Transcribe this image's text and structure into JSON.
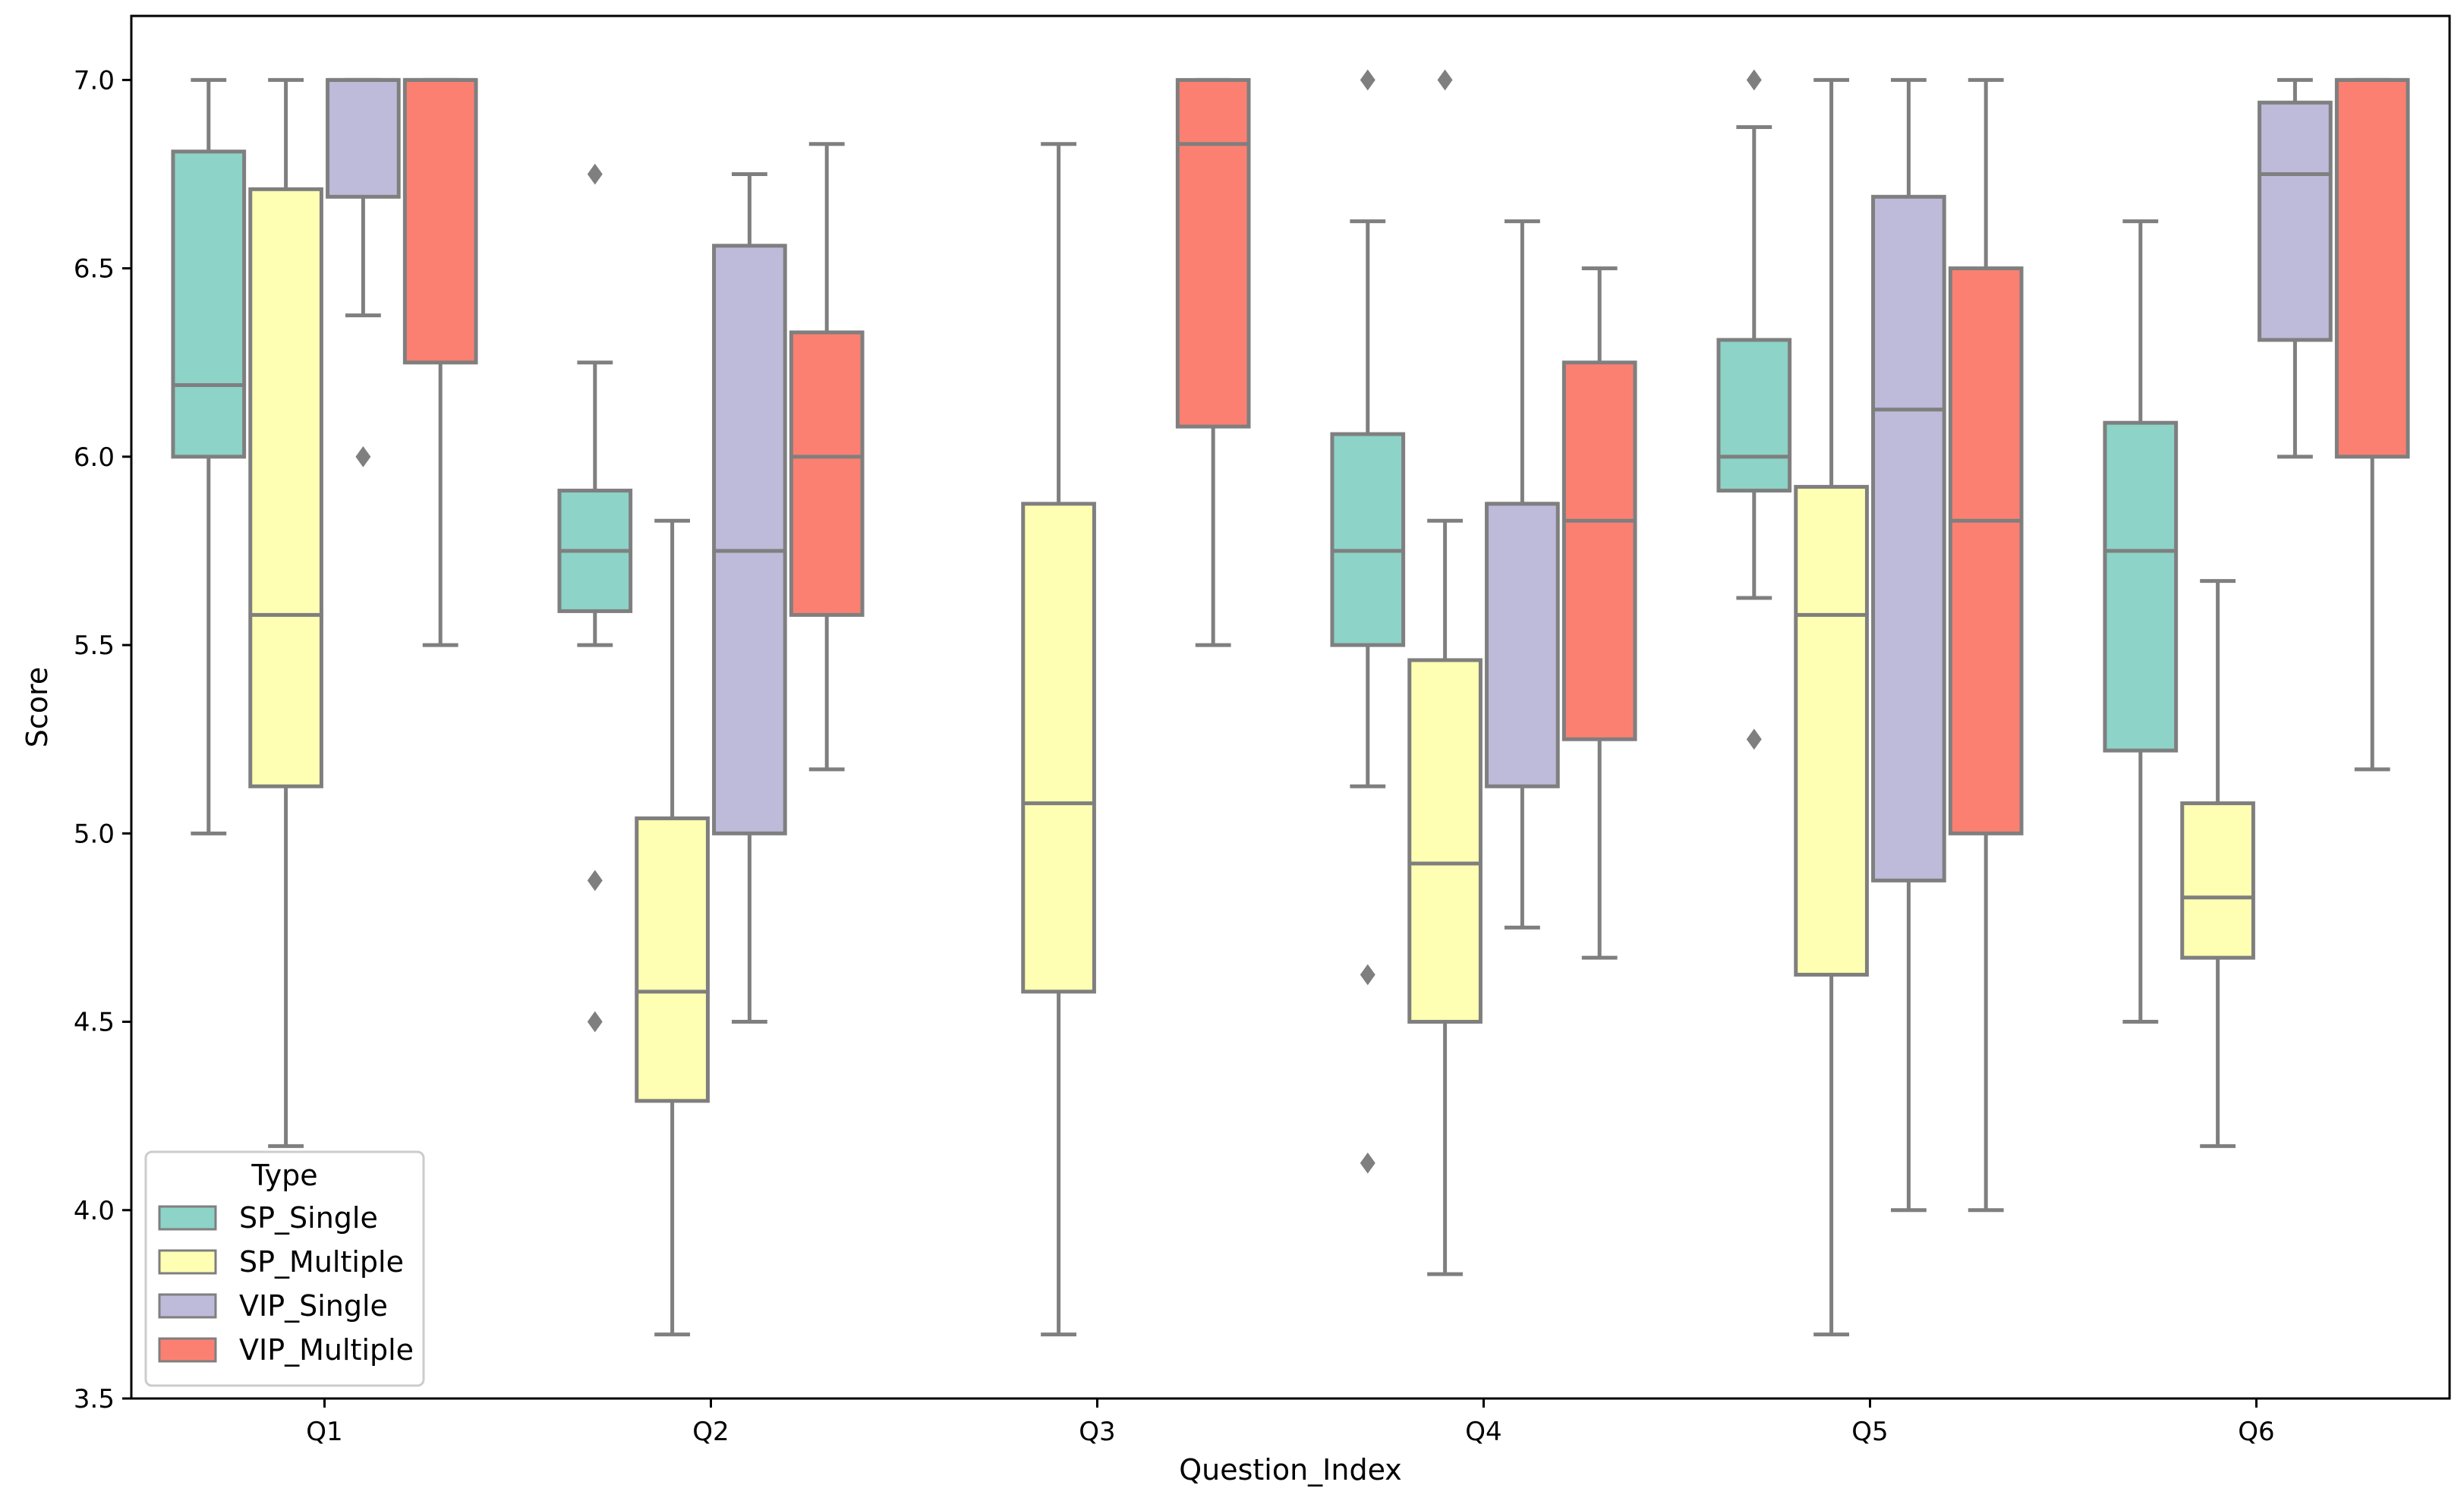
{
  "chart_data": {
    "type": "boxplot",
    "title": "",
    "xlabel": "Question_Index",
    "ylabel": "Score",
    "ylim": [
      3.5,
      7.17
    ],
    "yticks": [
      3.5,
      4.0,
      4.5,
      5.0,
      5.5,
      6.0,
      6.5,
      7.0
    ],
    "ytick_labels": [
      "3.5",
      "4.0",
      "4.5",
      "5.0",
      "5.5",
      "6.0",
      "6.5",
      "7.0"
    ],
    "categories": [
      "Q1",
      "Q2",
      "Q3",
      "Q4",
      "Q5",
      "Q6"
    ],
    "legend": {
      "title": "Type",
      "placement": "lower-left"
    },
    "series": [
      {
        "name": "SP_Single",
        "color": "#8dd3c7",
        "boxes": [
          {
            "category": "Q1",
            "whisker_low": 5.0,
            "q1": 6.0,
            "median": 6.19,
            "q3": 6.81,
            "whisker_high": 7.0,
            "outliers": []
          },
          {
            "category": "Q2",
            "whisker_low": 5.5,
            "q1": 5.59,
            "median": 5.75,
            "q3": 5.91,
            "whisker_high": 6.25,
            "outliers": [
              6.75,
              4.875,
              4.5
            ]
          },
          null,
          {
            "category": "Q4",
            "whisker_low": 5.125,
            "q1": 5.5,
            "median": 5.75,
            "q3": 6.06,
            "whisker_high": 6.625,
            "outliers": [
              7.0,
              4.625,
              4.125
            ]
          },
          {
            "category": "Q5",
            "whisker_low": 5.625,
            "q1": 5.91,
            "median": 6.0,
            "q3": 6.31,
            "whisker_high": 6.875,
            "outliers": [
              7.0,
              5.25
            ]
          },
          {
            "category": "Q6",
            "whisker_low": 4.5,
            "q1": 5.22,
            "median": 5.75,
            "q3": 6.09,
            "whisker_high": 6.625,
            "outliers": []
          }
        ]
      },
      {
        "name": "SP_Multiple",
        "color": "#ffffb3",
        "boxes": [
          {
            "category": "Q1",
            "whisker_low": 4.17,
            "q1": 5.125,
            "median": 5.58,
            "q3": 6.71,
            "whisker_high": 7.0,
            "outliers": []
          },
          {
            "category": "Q2",
            "whisker_low": 3.67,
            "q1": 4.29,
            "median": 4.58,
            "q3": 5.04,
            "whisker_high": 5.83,
            "outliers": []
          },
          {
            "category": "Q3",
            "whisker_low": 3.67,
            "q1": 4.58,
            "median": 5.08,
            "q3": 5.875,
            "whisker_high": 6.83,
            "outliers": []
          },
          {
            "category": "Q4",
            "whisker_low": 3.83,
            "q1": 4.5,
            "median": 4.92,
            "q3": 5.46,
            "whisker_high": 5.83,
            "outliers": [
              7.0
            ]
          },
          {
            "category": "Q5",
            "whisker_low": 3.67,
            "q1": 4.625,
            "median": 5.58,
            "q3": 5.92,
            "whisker_high": 7.0,
            "outliers": []
          },
          {
            "category": "Q6",
            "whisker_low": 4.17,
            "q1": 4.67,
            "median": 4.83,
            "q3": 5.08,
            "whisker_high": 5.67,
            "outliers": []
          }
        ]
      },
      {
        "name": "VIP_Single",
        "color": "#bebada",
        "boxes": [
          {
            "category": "Q1",
            "whisker_low": 6.375,
            "q1": 6.69,
            "median": 7.0,
            "q3": 7.0,
            "whisker_high": 7.0,
            "outliers": [
              6.0
            ]
          },
          {
            "category": "Q2",
            "whisker_low": 4.5,
            "q1": 5.0,
            "median": 5.75,
            "q3": 6.56,
            "whisker_high": 6.75,
            "outliers": []
          },
          null,
          {
            "category": "Q4",
            "whisker_low": 4.75,
            "q1": 5.125,
            "median": 5.875,
            "q3": 5.875,
            "whisker_high": 6.625,
            "outliers": []
          },
          {
            "category": "Q5",
            "whisker_low": 4.0,
            "q1": 4.875,
            "median": 6.125,
            "q3": 6.69,
            "whisker_high": 7.0,
            "outliers": []
          },
          {
            "category": "Q6",
            "whisker_low": 6.0,
            "q1": 6.31,
            "median": 6.75,
            "q3": 6.94,
            "whisker_high": 7.0,
            "outliers": []
          }
        ]
      },
      {
        "name": "VIP_Multiple",
        "color": "#fb8072",
        "boxes": [
          {
            "category": "Q1",
            "whisker_low": 5.5,
            "q1": 6.25,
            "median": 7.0,
            "q3": 7.0,
            "whisker_high": 7.0,
            "outliers": []
          },
          {
            "category": "Q2",
            "whisker_low": 5.17,
            "q1": 5.58,
            "median": 6.0,
            "q3": 6.33,
            "whisker_high": 6.83,
            "outliers": []
          },
          {
            "category": "Q3",
            "whisker_low": 5.5,
            "q1": 6.08,
            "median": 6.83,
            "q3": 7.0,
            "whisker_high": 7.0,
            "outliers": []
          },
          {
            "category": "Q4",
            "whisker_low": 4.67,
            "q1": 5.25,
            "median": 5.83,
            "q3": 6.25,
            "whisker_high": 6.5,
            "outliers": []
          },
          {
            "category": "Q5",
            "whisker_low": 4.0,
            "q1": 5.0,
            "median": 5.83,
            "q3": 6.5,
            "whisker_high": 7.0,
            "outliers": []
          },
          {
            "category": "Q6",
            "whisker_low": 5.17,
            "q1": 6.0,
            "median": 7.0,
            "q3": 7.0,
            "whisker_high": 7.0,
            "outliers": []
          }
        ]
      }
    ]
  }
}
